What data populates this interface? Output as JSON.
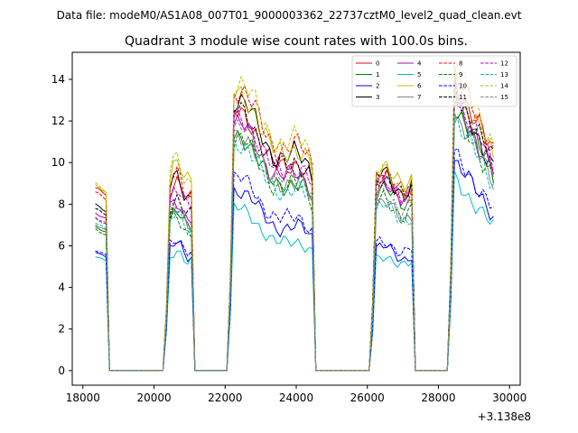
{
  "chart_data": {
    "type": "line",
    "suptitle": "Data file: modeM0/AS1A08_007T01_9000003362_22737cztM0_level2_quad_clean.evt",
    "title": "Quadrant 3 module wise count rates with 100.0s bins.",
    "xlabel": "",
    "ylabel": "",
    "x_offset_label": "+3.138e8",
    "xlim": [
      17700,
      30300
    ],
    "ylim": [
      -0.7,
      15.3
    ],
    "x_ticks": [
      18000,
      20000,
      22000,
      24000,
      26000,
      28000,
      30000
    ],
    "x_tick_labels": [
      "18000",
      "20000",
      "22000",
      "24000",
      "26000",
      "28000",
      "30000"
    ],
    "y_ticks": [
      0,
      2,
      4,
      6,
      8,
      10,
      12,
      14
    ],
    "y_tick_labels": [
      "0",
      "2",
      "4",
      "6",
      "8",
      "10",
      "12",
      "14"
    ],
    "legend_position": "top-right",
    "legend_columns": 4,
    "bin_size": 100,
    "segments": [
      {
        "start": 18350,
        "end": 18650
      },
      {
        "start": 20350,
        "end": 21050
      },
      {
        "start": 22150,
        "end": 24450
      },
      {
        "start": 26150,
        "end": 27250
      },
      {
        "start": 28350,
        "end": 29550
      }
    ],
    "series": [
      {
        "name": "0",
        "color": "#ff0000",
        "dash": "solid",
        "levels": [
          8.8,
          9.1,
          11.0,
          9.4,
          13.0
        ]
      },
      {
        "name": "1",
        "color": "#008000",
        "dash": "solid",
        "levels": [
          6.9,
          7.6,
          10.0,
          8.7,
          11.9
        ]
      },
      {
        "name": "2",
        "color": "#0000ff",
        "dash": "solid",
        "levels": [
          5.7,
          6.1,
          7.7,
          5.9,
          9.4
        ]
      },
      {
        "name": "3",
        "color": "#000000",
        "dash": "solid",
        "levels": [
          8.0,
          9.3,
          11.5,
          9.4,
          12.3
        ]
      },
      {
        "name": "4",
        "color": "#bf00bf",
        "dash": "solid",
        "levels": [
          7.6,
          8.2,
          10.5,
          9.1,
          12.1
        ]
      },
      {
        "name": "5",
        "color": "#00bfbf",
        "dash": "solid",
        "levels": [
          5.5,
          5.8,
          6.9,
          5.5,
          8.6
        ]
      },
      {
        "name": "6",
        "color": "#bfbf00",
        "dash": "solid",
        "levels": [
          8.9,
          10.0,
          11.8,
          9.7,
          12.8
        ]
      },
      {
        "name": "7",
        "color": "#808080",
        "dash": "solid",
        "levels": [
          7.0,
          7.7,
          10.1,
          8.0,
          11.5
        ]
      },
      {
        "name": "8",
        "color": "#ff0000",
        "dash": "dashed",
        "levels": [
          8.6,
          9.4,
          12.0,
          9.3,
          13.3
        ]
      },
      {
        "name": "9",
        "color": "#008000",
        "dash": "dashed",
        "levels": [
          6.8,
          7.4,
          9.9,
          8.2,
          11.6
        ]
      },
      {
        "name": "10",
        "color": "#0000ff",
        "dash": "dashed",
        "levels": [
          5.8,
          6.4,
          8.2,
          6.2,
          9.7
        ]
      },
      {
        "name": "11",
        "color": "#000000",
        "dash": "dashed",
        "levels": [
          7.8,
          8.3,
          11.1,
          9.2,
          12.6
        ]
      },
      {
        "name": "12",
        "color": "#bf00bf",
        "dash": "dashed",
        "levels": [
          7.3,
          8.7,
          10.8,
          9.0,
          12.4
        ]
      },
      {
        "name": "13",
        "color": "#00bfbf",
        "dash": "dashed",
        "levels": [
          7.1,
          7.5,
          9.7,
          7.9,
          11.3
        ]
      },
      {
        "name": "14",
        "color": "#bfbf00",
        "dash": "dashed",
        "levels": [
          9.0,
          10.1,
          12.3,
          9.6,
          13.6
        ]
      },
      {
        "name": "15",
        "color": "#808080",
        "dash": "dashed",
        "levels": [
          7.4,
          8.0,
          10.4,
          8.5,
          12.0
        ]
      }
    ]
  }
}
